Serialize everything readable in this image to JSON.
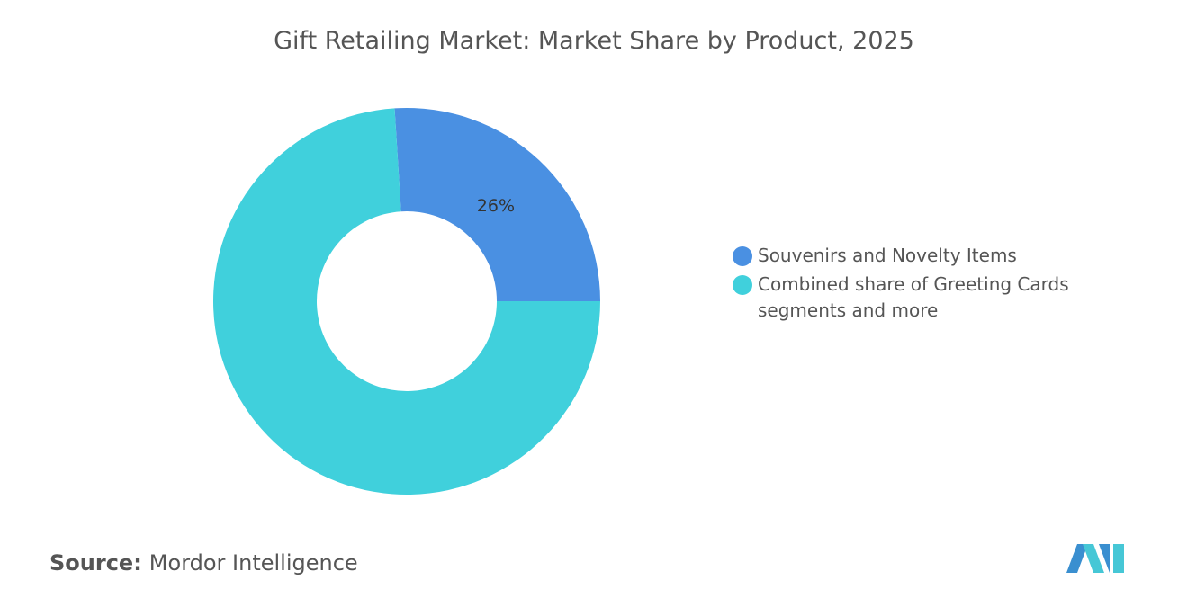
{
  "chart_data": {
    "type": "pie",
    "donut": true,
    "title": "Gift Retailing Market: Market Share by Product, 2025",
    "categories": [
      "Souvenirs and Novelty Items",
      "Combined share of Greeting Cards segments and more"
    ],
    "values": [
      26,
      74
    ],
    "value_labels": [
      "26%",
      null
    ],
    "colors": [
      "#4a90e2",
      "#40d0dc"
    ]
  },
  "footer": {
    "source_label": "Source:",
    "source": "Mordor Intelligence"
  }
}
